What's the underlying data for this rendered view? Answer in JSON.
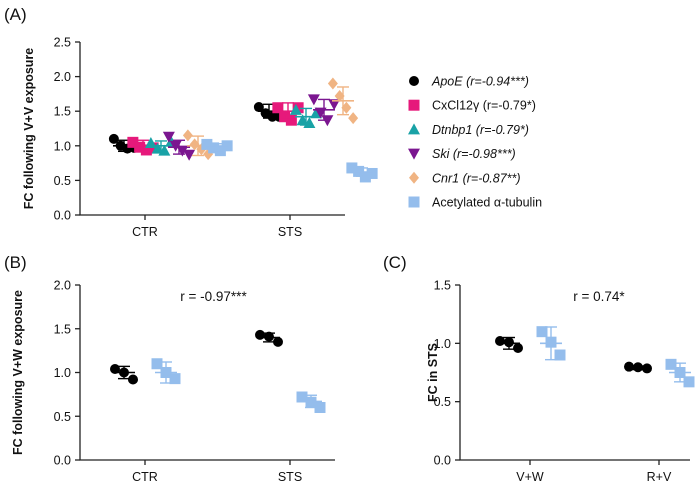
{
  "figure": {
    "panel_labels": [
      "(A)",
      "(B)",
      "(C)"
    ]
  },
  "colors": {
    "ApoE": "#000000",
    "CxCl12y": "#e6197b",
    "Dtnbp1": "#19a2a6",
    "Ski": "#7b1690",
    "Cnr1": "#f0b483",
    "Tubulin": "#94bdec"
  },
  "chart_data": [
    {
      "id": "A",
      "type": "scatter",
      "title": "",
      "xlabel": "",
      "ylabel": "FC following V+V exposure",
      "ylim": [
        0,
        2.5
      ],
      "yticks": [
        "0.0",
        "0.5",
        "1.0",
        "1.5",
        "2.0",
        "2.5"
      ],
      "categories": [
        "CTR",
        "STS"
      ],
      "series": [
        {
          "key": "ApoE",
          "name_italic": "ApoE",
          "name_rest": " (r=-0.94***)",
          "marker": "circle",
          "mean": [
            1.0,
            1.5
          ],
          "sd": [
            0.08,
            0.1
          ],
          "points": [
            [
              1.1,
              1.0,
              0.96,
              0.97
            ],
            [
              1.56,
              1.47,
              1.42,
              1.42
            ]
          ]
        },
        {
          "key": "CxCl12y",
          "name_italic": "",
          "name_rest": "CxCl12γ (r=-0.79*)",
          "marker": "square",
          "mean": [
            1.0,
            1.5
          ],
          "sd": [
            0.08,
            0.12
          ],
          "points": [
            [
              1.05,
              0.98,
              0.94,
              0.97
            ],
            [
              1.55,
              1.42,
              1.37,
              1.55
            ]
          ]
        },
        {
          "key": "Dtnbp1",
          "name_italic": "Dtnbp1",
          "name_rest": " (r=-0.79*)",
          "marker": "triangle-up",
          "mean": [
            1.0,
            1.42
          ],
          "sd": [
            0.07,
            0.12
          ],
          "points": [
            [
              1.04,
              0.96,
              0.93,
              1.06
            ],
            [
              1.52,
              1.37,
              1.33,
              1.47
            ]
          ]
        },
        {
          "key": "Ski",
          "name_italic": "Ski",
          "name_rest": " (r=-0.98***)",
          "marker": "triangle-down",
          "mean": [
            0.98,
            1.52
          ],
          "sd": [
            0.1,
            0.15
          ],
          "points": [
            [
              1.13,
              1.0,
              0.93,
              0.87
            ],
            [
              1.67,
              1.48,
              1.37,
              1.6
            ]
          ]
        },
        {
          "key": "Cnr1",
          "name_italic": "Cnr1",
          "name_rest": " (r=-0.87**)",
          "marker": "diamond",
          "mean": [
            1.0,
            1.65
          ],
          "sd": [
            0.14,
            0.2
          ],
          "points": [
            [
              1.15,
              1.02,
              0.95,
              0.88
            ],
            [
              1.9,
              1.72,
              1.55,
              1.4
            ]
          ]
        },
        {
          "key": "Tubulin",
          "name_italic": "",
          "name_rest": "Acetylated α-tubulin",
          "marker": "square",
          "mean": [
            0.98,
            0.62
          ],
          "sd": [
            0.05,
            0.06
          ],
          "points": [
            [
              1.02,
              0.97,
              0.93,
              1.0
            ],
            [
              0.68,
              0.63,
              0.55,
              0.6
            ]
          ]
        }
      ],
      "legend_position": "right"
    },
    {
      "id": "B",
      "type": "scatter",
      "title": "",
      "annotation": "r = -0.97***",
      "xlabel": "",
      "ylabel": "FC following V+W exposure",
      "ylim": [
        0,
        2.0
      ],
      "yticks": [
        "0.0",
        "0.5",
        "1.0",
        "1.5",
        "2.0"
      ],
      "categories": [
        "CTR",
        "STS"
      ],
      "series": [
        {
          "key": "ApoE",
          "marker": "circle",
          "mean": [
            1.0,
            1.4
          ],
          "sd": [
            0.07,
            0.05
          ],
          "points": [
            [
              1.04,
              1.0,
              0.92
            ],
            [
              1.43,
              1.41,
              1.35
            ]
          ]
        },
        {
          "key": "Tubulin",
          "marker": "square",
          "mean": [
            1.0,
            0.67
          ],
          "sd": [
            0.12,
            0.07
          ],
          "points": [
            [
              1.1,
              1.0,
              0.93
            ],
            [
              0.72,
              0.66,
              0.6
            ]
          ]
        }
      ]
    },
    {
      "id": "C",
      "type": "scatter",
      "title": "",
      "annotation": "r = 0.74*",
      "xlabel": "",
      "ylabel": "FC in STS",
      "ylim": [
        0,
        1.5
      ],
      "yticks": [
        "0.0",
        "0.5",
        "1.0",
        "1.5"
      ],
      "categories": [
        "V+W",
        "R+V"
      ],
      "series": [
        {
          "key": "ApoE",
          "marker": "circle",
          "mean": [
            1.0,
            0.79
          ],
          "sd": [
            0.05,
            0.015
          ],
          "points": [
            [
              1.02,
              1.01,
              0.96
            ],
            [
              0.8,
              0.795,
              0.785
            ]
          ]
        },
        {
          "key": "Tubulin",
          "marker": "square",
          "mean": [
            1.0,
            0.75
          ],
          "sd": [
            0.14,
            0.08
          ],
          "points": [
            [
              1.1,
              1.01,
              0.9
            ],
            [
              0.82,
              0.75,
              0.67
            ]
          ]
        }
      ]
    }
  ]
}
